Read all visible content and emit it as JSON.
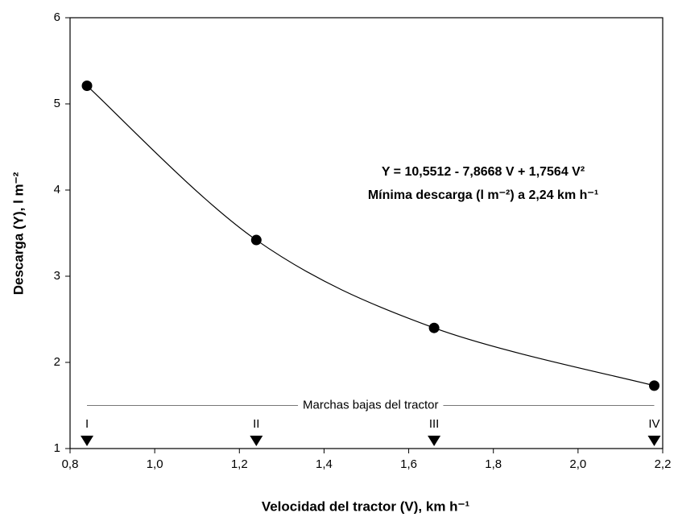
{
  "chart_data": {
    "type": "line",
    "x_label": "Velocidad del tractor (V), km h⁻¹",
    "y_label": "Descarga (Y), l m⁻²",
    "x": [
      0.84,
      1.24,
      1.66,
      2.18
    ],
    "values": [
      5.21,
      3.42,
      2.4,
      1.73
    ],
    "color": "#000000",
    "xlim": [
      0.8,
      2.2
    ],
    "ylim": [
      1,
      6
    ],
    "xticks": [
      {
        "value": 0.8,
        "label": "0,8"
      },
      {
        "value": 1.0,
        "label": "1,0"
      },
      {
        "value": 1.2,
        "label": "1,2"
      },
      {
        "value": 1.4,
        "label": "1,4"
      },
      {
        "value": 1.6,
        "label": "1,6"
      },
      {
        "value": 1.8,
        "label": "1,8"
      },
      {
        "value": 2.0,
        "label": "2,0"
      },
      {
        "value": 2.2,
        "label": "2,2"
      }
    ],
    "yticks": [
      1,
      2,
      3,
      4,
      5,
      6
    ],
    "grid": false,
    "annotations": [
      "Y = 10,5512 - 7,8668 V + 1,7564 V²",
      "Mínima descarga (l m⁻²) a 2,24 km h⁻¹"
    ],
    "gear_band": {
      "label": "Marchas bajas del tractor",
      "y": 1.5
    },
    "gear_labels": [
      "I",
      "II",
      "III",
      "IV"
    ]
  }
}
